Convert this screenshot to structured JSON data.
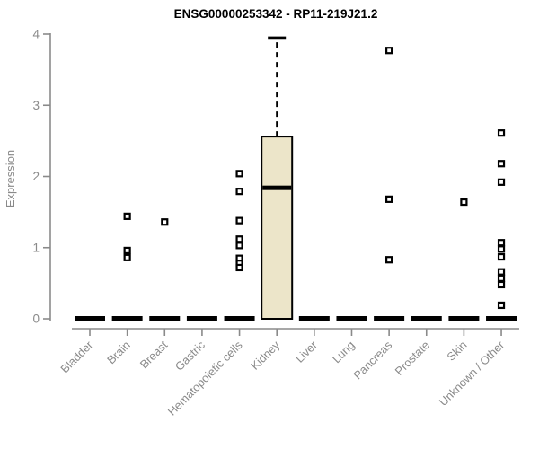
{
  "chart_data": {
    "type": "boxplot",
    "title": "ENSG00000253342 - RP11-219J21.2",
    "xlabel": "",
    "ylabel": "Expression",
    "ylim": [
      0,
      4
    ],
    "yticks": [
      0,
      1,
      2,
      3,
      4
    ],
    "grid": false,
    "legend": null,
    "categories": [
      "Bladder",
      "Brain",
      "Breast",
      "Gastric",
      "Hematopoietic cells",
      "Kidney",
      "Liver",
      "Lung",
      "Pancreas",
      "Prostate",
      "Skin",
      "Unknown / Other"
    ],
    "boxes": [
      {
        "category": "Bladder",
        "low": 0,
        "q1": 0,
        "median": 0,
        "q3": 0,
        "high": 0,
        "outliers": []
      },
      {
        "category": "Brain",
        "low": 0,
        "q1": 0,
        "median": 0,
        "q3": 0,
        "high": 0,
        "outliers": [
          1.44,
          0.96,
          0.86
        ]
      },
      {
        "category": "Breast",
        "low": 0,
        "q1": 0,
        "median": 0,
        "q3": 0,
        "high": 0,
        "outliers": [
          1.36
        ]
      },
      {
        "category": "Gastric",
        "low": 0,
        "q1": 0,
        "median": 0,
        "q3": 0,
        "high": 0,
        "outliers": []
      },
      {
        "category": "Hematopoietic cells",
        "low": 0,
        "q1": 0,
        "median": 0,
        "q3": 0,
        "high": 0,
        "outliers": [
          2.04,
          1.79,
          1.38,
          1.12,
          1.03,
          0.85,
          0.78,
          0.72
        ]
      },
      {
        "category": "Kidney",
        "low": 0,
        "q1": 0,
        "median": 1.84,
        "q3": 2.56,
        "high": 3.95,
        "outliers": []
      },
      {
        "category": "Liver",
        "low": 0,
        "q1": 0,
        "median": 0,
        "q3": 0,
        "high": 0,
        "outliers": []
      },
      {
        "category": "Lung",
        "low": 0,
        "q1": 0,
        "median": 0,
        "q3": 0,
        "high": 0,
        "outliers": []
      },
      {
        "category": "Pancreas",
        "low": 0,
        "q1": 0,
        "median": 0,
        "q3": 0,
        "high": 0,
        "outliers": [
          3.77,
          1.68,
          0.83
        ]
      },
      {
        "category": "Prostate",
        "low": 0,
        "q1": 0,
        "median": 0,
        "q3": 0,
        "high": 0,
        "outliers": []
      },
      {
        "category": "Skin",
        "low": 0,
        "q1": 0,
        "median": 0,
        "q3": 0,
        "high": 0,
        "outliers": [
          1.64
        ]
      },
      {
        "category": "Unknown / Other",
        "low": 0,
        "q1": 0,
        "median": 0,
        "q3": 0,
        "high": 0,
        "outliers": [
          2.61,
          2.18,
          1.92,
          1.07,
          0.98,
          0.87,
          0.66,
          0.57,
          0.48,
          0.19
        ]
      }
    ],
    "colors": {
      "box_fill": "#ECE5C9",
      "box_border": "#000000",
      "median": "#000000",
      "whisker": "#000000",
      "outlier_stroke": "#000000",
      "outlier_fill": "#ffffff",
      "axis": "#8a8a8a",
      "tick_text": "#8a8a8a",
      "title_text": "#000000",
      "background": "#ffffff"
    }
  }
}
